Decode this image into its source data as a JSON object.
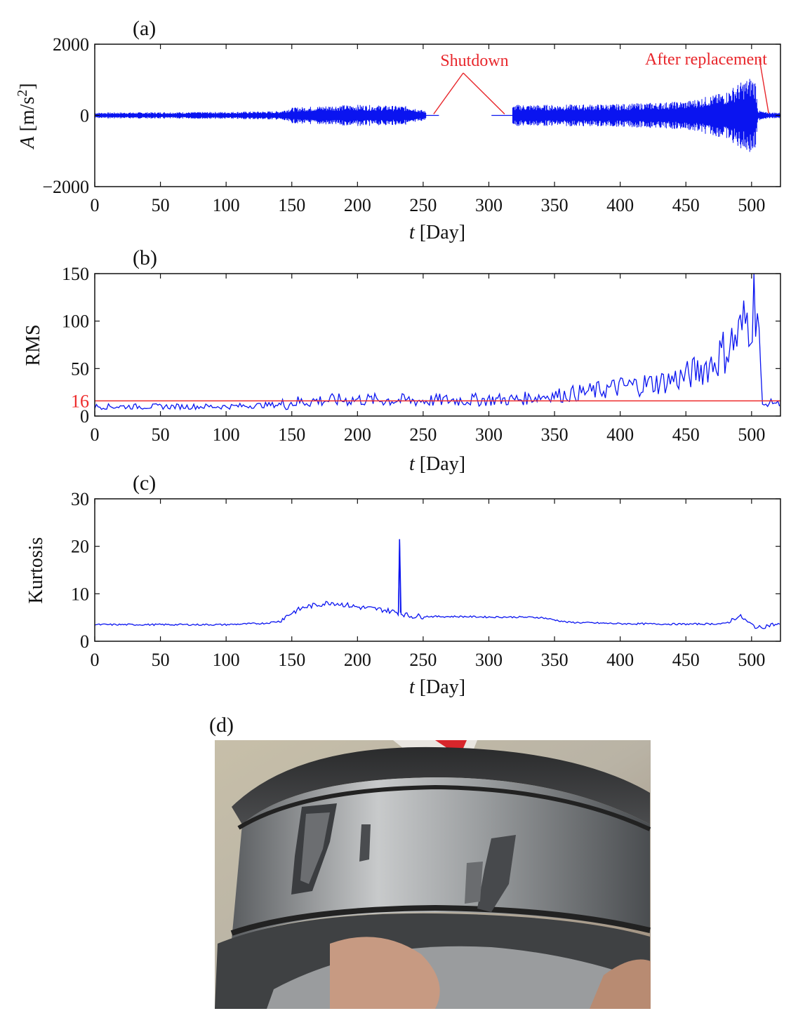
{
  "panel_labels": [
    "(a)",
    "(b)",
    "(c)",
    "(d)"
  ],
  "colors": {
    "signal": "#0a14f0",
    "threshold": "#ee2b2b",
    "annotation": "#e8262b",
    "axis": "#111111"
  },
  "chart_data": [
    {
      "id": "a",
      "type": "line",
      "xlabel": "t [Day]",
      "ylabel": "A [m/s2]",
      "xlim": [
        0,
        522
      ],
      "ylim": [
        -2000,
        2000
      ],
      "x_ticks": [
        0,
        50,
        100,
        150,
        200,
        250,
        300,
        350,
        400,
        450,
        500
      ],
      "y_ticks": [
        2000,
        0,
        -2000
      ],
      "y_tick_labels": [
        "2000",
        "0",
        "−2000"
      ],
      "envelope": {
        "x": [
          0,
          50,
          100,
          140,
          150,
          180,
          200,
          220,
          240,
          252,
          260,
          300,
          310,
          320,
          350,
          400,
          450,
          480,
          490,
          495,
          500,
          503,
          505,
          510,
          522
        ],
        "amp": [
          80,
          90,
          100,
          120,
          220,
          280,
          300,
          280,
          260,
          120,
          0,
          0,
          0,
          300,
          300,
          320,
          400,
          650,
          900,
          1000,
          1100,
          1000,
          150,
          90,
          80
        ]
      },
      "gaps": [
        [
          252,
          262
        ],
        [
          302,
          318
        ]
      ],
      "annotations": [
        {
          "text": "Shutdown",
          "targets_x": [
            258,
            312
          ]
        },
        {
          "text": "After replacement",
          "targets_x": [
            513
          ]
        }
      ]
    },
    {
      "id": "b",
      "type": "line",
      "xlabel": "t [Day]",
      "ylabel": "RMS",
      "xlim": [
        0,
        522
      ],
      "ylim": [
        0,
        150
      ],
      "x_ticks": [
        0,
        50,
        100,
        150,
        200,
        250,
        300,
        350,
        400,
        450,
        500
      ],
      "y_ticks": [
        0,
        50,
        100,
        150
      ],
      "threshold": {
        "value": 16,
        "label": "16"
      },
      "trend": {
        "x": [
          0,
          50,
          100,
          140,
          150,
          170,
          200,
          250,
          300,
          320,
          350,
          380,
          400,
          430,
          450,
          470,
          490,
          500,
          503,
          505,
          508,
          515,
          522
        ],
        "y": [
          10,
          10,
          10,
          12,
          15,
          17,
          18,
          17,
          18,
          18,
          23,
          28,
          33,
          38,
          45,
          60,
          90,
          120,
          140,
          125,
          10,
          15,
          13
        ]
      }
    },
    {
      "id": "c",
      "type": "line",
      "xlabel": "t [Day]",
      "ylabel": "Kurtosis",
      "xlim": [
        0,
        522
      ],
      "ylim": [
        0,
        30
      ],
      "x_ticks": [
        0,
        50,
        100,
        150,
        200,
        250,
        300,
        350,
        400,
        450,
        500
      ],
      "y_ticks": [
        0,
        10,
        20,
        30
      ],
      "trend": {
        "x": [
          0,
          50,
          100,
          130,
          140,
          150,
          160,
          180,
          200,
          220,
          232,
          240,
          260,
          280,
          300,
          320,
          340,
          360,
          400,
          450,
          480,
          488,
          492,
          498,
          505,
          515,
          522
        ],
        "y": [
          3.5,
          3.5,
          3.5,
          3.8,
          4.2,
          6.0,
          7.2,
          8.2,
          7.2,
          6.6,
          6.0,
          5.3,
          5.2,
          5.2,
          5.1,
          5.1,
          5.0,
          4.0,
          3.7,
          3.6,
          3.7,
          5.0,
          5.2,
          3.8,
          2.8,
          3.5,
          3.5
        ]
      },
      "spike": {
        "x": 232,
        "y": 21.5
      }
    }
  ]
}
